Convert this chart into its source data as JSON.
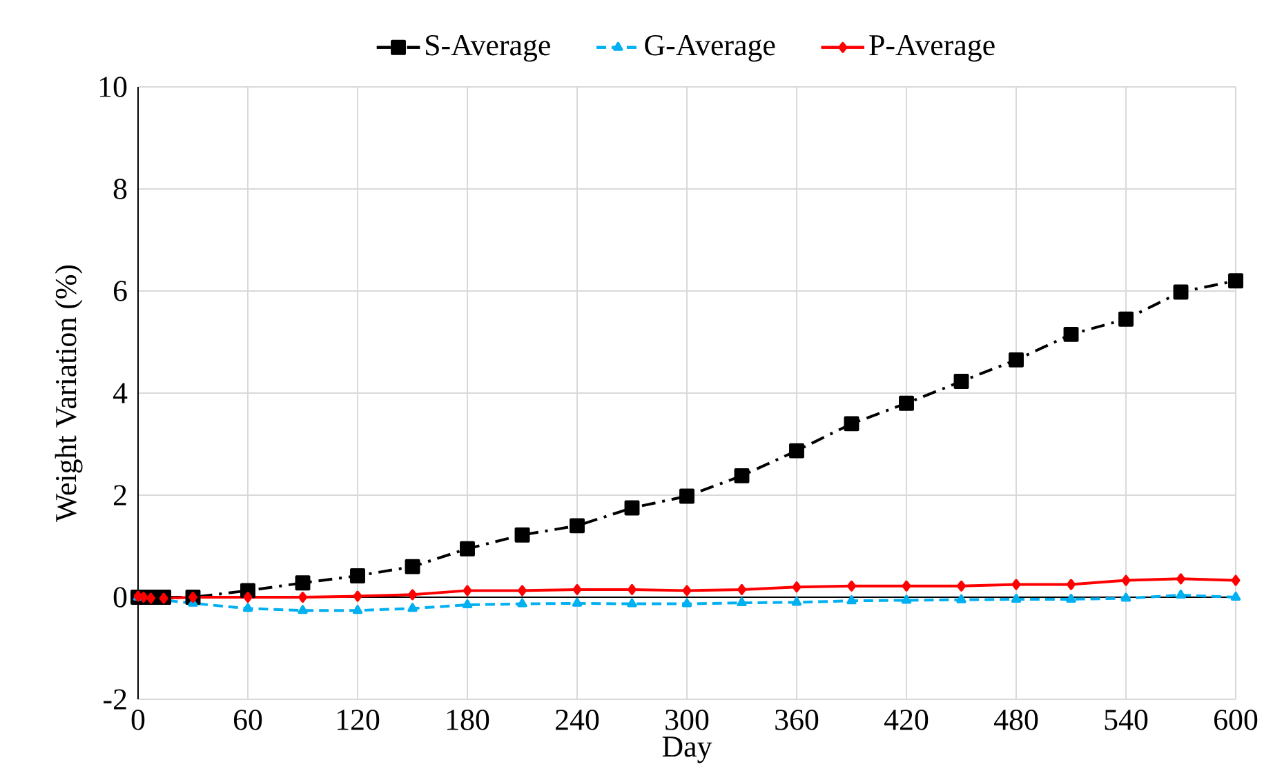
{
  "chart_data": {
    "type": "line",
    "xlabel": "Day",
    "ylabel": "Weight  Variation (%)",
    "xlim": [
      0,
      600
    ],
    "xticks": [
      0,
      60,
      120,
      180,
      240,
      300,
      360,
      420,
      480,
      540,
      600
    ],
    "ylim": [
      -2,
      10
    ],
    "yticks": [
      -2,
      0,
      2,
      4,
      6,
      8,
      10
    ],
    "grid": true,
    "legend": "top",
    "x": [
      0,
      3,
      7,
      14,
      30,
      60,
      90,
      120,
      150,
      180,
      210,
      240,
      270,
      300,
      330,
      360,
      390,
      420,
      450,
      480,
      510,
      540,
      570,
      600
    ],
    "series": [
      {
        "name": "S-Average",
        "color": "#000000",
        "marker": "square",
        "line_style": "dashdot",
        "values": [
          0,
          0,
          0,
          0,
          0,
          0.13,
          0.28,
          0.42,
          0.6,
          0.95,
          1.22,
          1.4,
          1.75,
          1.98,
          2.38,
          2.87,
          3.4,
          3.8,
          4.23,
          4.65,
          5.15,
          5.45,
          5.98,
          6.2
        ]
      },
      {
        "name": "G-Average",
        "color": "#00b0f0",
        "marker": "triangle",
        "line_style": "dashed",
        "values": [
          0,
          null,
          null,
          null,
          -0.12,
          -0.22,
          -0.26,
          -0.26,
          -0.22,
          -0.15,
          -0.13,
          -0.12,
          -0.13,
          -0.13,
          -0.11,
          -0.1,
          -0.07,
          -0.06,
          -0.05,
          -0.04,
          -0.04,
          -0.02,
          0.04,
          0.0
        ]
      },
      {
        "name": "P-Average",
        "color": "#ff0000",
        "marker": "diamond",
        "line_style": "solid",
        "values": [
          0.02,
          0,
          -0.02,
          -0.02,
          0,
          0,
          0,
          0.02,
          0.05,
          0.13,
          0.13,
          0.15,
          0.15,
          0.13,
          0.15,
          0.2,
          0.22,
          0.22,
          0.22,
          0.25,
          0.25,
          0.33,
          0.36,
          0.33
        ]
      }
    ]
  }
}
